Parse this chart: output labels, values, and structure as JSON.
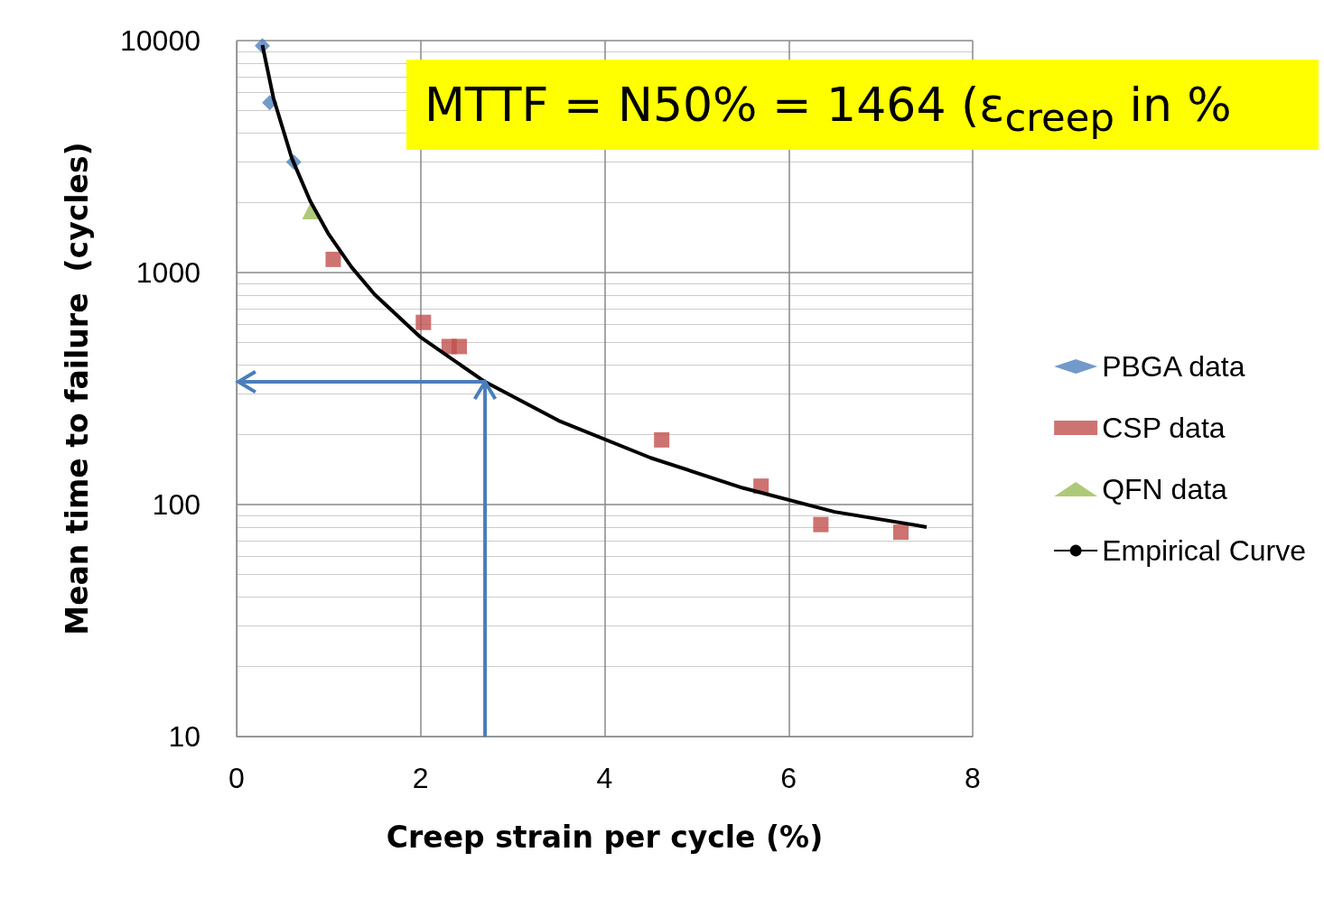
{
  "chart_data": {
    "type": "scatter",
    "title": "MTTF = N50% = 1464 (ε$_{creep}$ in %",
    "xlabel": "Creep strain per cycle (%)",
    "ylabel": "Mean time to failure  (cycles)",
    "xlim": [
      0,
      8
    ],
    "xticks": [
      0,
      2,
      4,
      6,
      8
    ],
    "ylim": [
      10,
      10000
    ],
    "yticks": [
      10,
      100,
      1000,
      10000
    ],
    "log": "y",
    "grid": true,
    "legend": "right",
    "series": [
      {
        "name": "PBGA data",
        "color": "#4f81bd",
        "marker": "diamond",
        "x": [
          0.28,
          0.36,
          0.62
        ],
        "values": [
          9500,
          5400,
          3000
        ]
      },
      {
        "name": "CSP data",
        "color": "#c0504d",
        "marker": "square",
        "x": [
          1.05,
          2.03,
          2.31,
          2.42,
          4.62,
          5.7,
          6.35,
          7.22
        ],
        "values": [
          1140,
          610,
          480,
          480,
          190,
          120,
          82,
          76
        ]
      },
      {
        "name": "QFN data",
        "color": "#9bbb59",
        "marker": "triangle",
        "x": [
          0.8
        ],
        "values": [
          1840
        ]
      },
      {
        "name": "Empirical Curve",
        "type": "line",
        "color": "#000000",
        "marker": "none",
        "x": [
          0.28,
          0.4,
          0.6,
          0.8,
          1.0,
          1.25,
          1.5,
          2.0,
          2.7,
          3.5,
          4.5,
          5.5,
          6.5,
          7.5
        ],
        "values": [
          9570,
          5660,
          3110,
          2035,
          1464,
          1054,
          805,
          526,
          338,
          230,
          159,
          118,
          93,
          80
        ]
      }
    ],
    "ref_lines": [
      {
        "axis": "x",
        "value": 2.7,
        "color": "#4a7ebb"
      },
      {
        "axis": "y",
        "value": 338,
        "color": "#4a7ebb"
      }
    ]
  }
}
